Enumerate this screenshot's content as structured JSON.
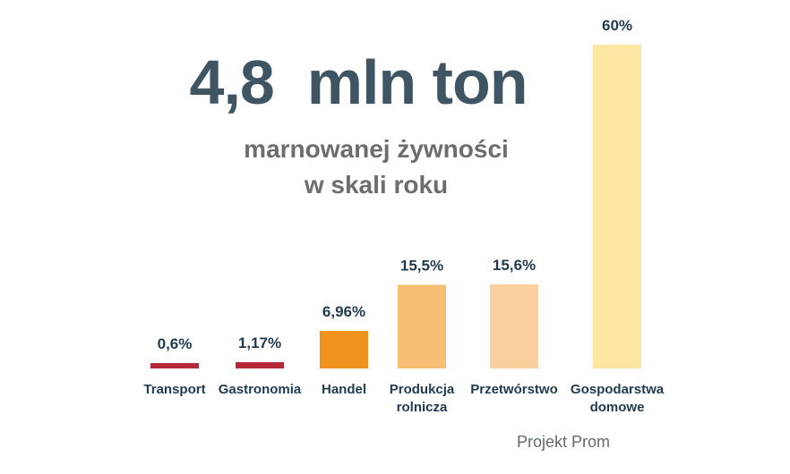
{
  "headline": {
    "main": "4,8  mln ton",
    "line1": "marnowanej żywności",
    "line2": "w skali roku"
  },
  "source": "Projekt Prom",
  "colors": {
    "Transport": "#b5283a",
    "Gastronomia": "#b5283a",
    "Handel": "#f0921e",
    "Produkcja rolnicza": "#f7be74",
    "Przetwórstwo": "#fbd09f",
    "Gospodarstwa domowe": "#fde5a2"
  },
  "chart_data": {
    "type": "bar",
    "title": "",
    "xlabel": "",
    "ylabel": "",
    "ylim": [
      0,
      60
    ],
    "unit": "%",
    "categories": [
      "Transport",
      "Gastronomia",
      "Handel",
      "Produkcja rolnicza",
      "Przetwórstwo",
      "Gospodarstwa domowe"
    ],
    "category_lines": [
      [
        "Transport"
      ],
      [
        "Gastronomia"
      ],
      [
        "Handel"
      ],
      [
        "Produkcja",
        "rolnicza"
      ],
      [
        "Przetwórstwo"
      ],
      [
        "Gospodarstwa",
        "domowe"
      ]
    ],
    "values": [
      0.6,
      1.17,
      6.96,
      15.5,
      15.6,
      60
    ],
    "value_labels": [
      "0,6%",
      "1,17%",
      "6,96%",
      "15,5%",
      "15,6%",
      "60%"
    ]
  }
}
